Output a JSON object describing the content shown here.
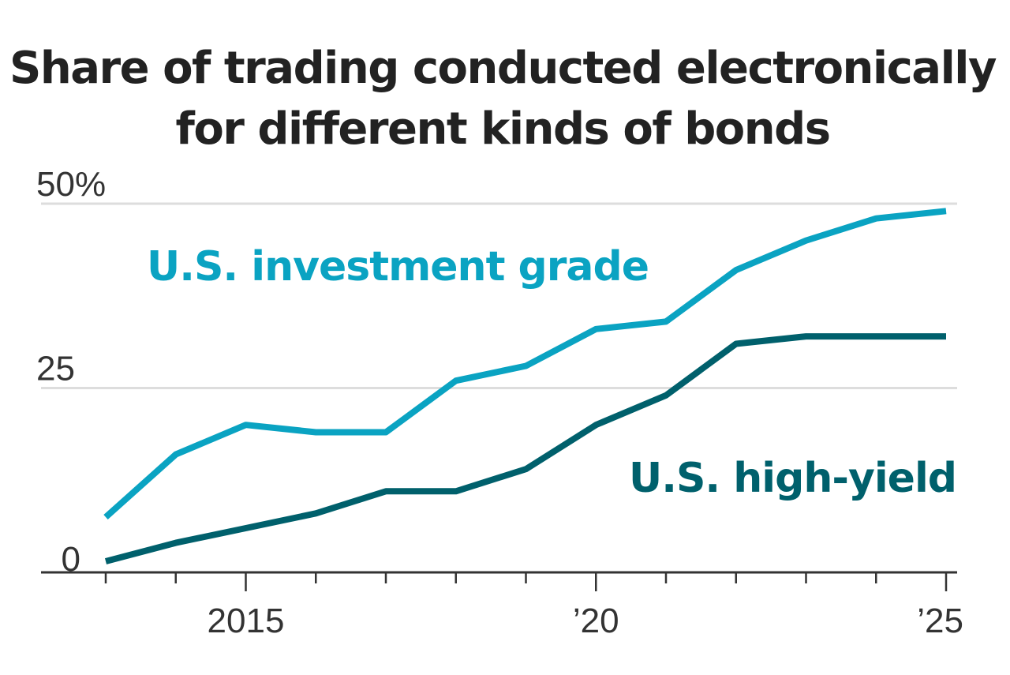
{
  "chart_data": {
    "type": "line",
    "title": "Share of trading conducted electronically for different kinds of bonds",
    "title_lines": [
      "Share of trading conducted electronically",
      "for different kinds of bonds"
    ],
    "xlabel": "",
    "ylabel": "",
    "x": [
      2013,
      2014,
      2015,
      2016,
      2017,
      2018,
      2019,
      2020,
      2021,
      2022,
      2023,
      2024,
      2025
    ],
    "xlim": [
      2013,
      2025
    ],
    "ylim": [
      0,
      50
    ],
    "y_ticks": [
      {
        "value": 0,
        "label": "0"
      },
      {
        "value": 25,
        "label": "25"
      },
      {
        "value": 50,
        "label": "50%"
      }
    ],
    "x_tick_labels": [
      {
        "value": 2015,
        "label": "2015"
      },
      {
        "value": 2020,
        "label": "’20"
      },
      {
        "value": 2025,
        "label": "’25"
      }
    ],
    "gridlines": [
      25,
      50
    ],
    "grid": true,
    "legend": "direct labels",
    "series": [
      {
        "name": "U.S. investment grade",
        "color": "#0aa3c2",
        "values": [
          7.5,
          16,
          20,
          19,
          19,
          26,
          28,
          33,
          34,
          41,
          45,
          48,
          49
        ]
      },
      {
        "name": "U.S. high-yield",
        "color": "#00606c",
        "values": [
          1.5,
          4,
          6,
          8,
          11,
          11,
          14,
          20,
          24,
          31,
          32,
          32,
          32
        ]
      }
    ]
  }
}
